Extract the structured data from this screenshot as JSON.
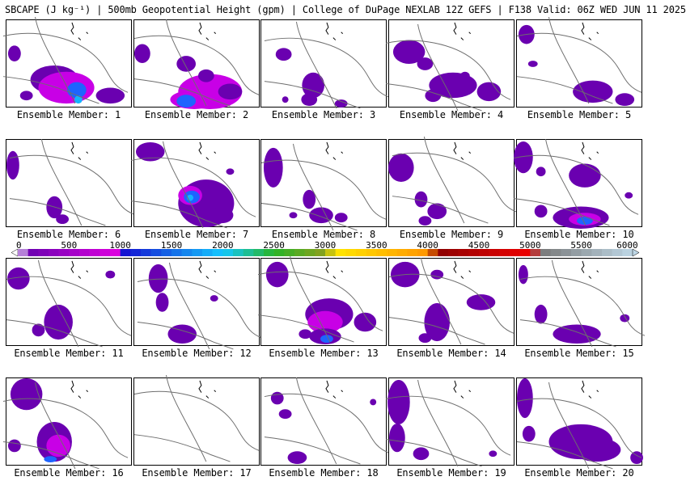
{
  "title": {
    "field": "SBCAPE (J kg⁻¹)",
    "overlay": "500mb Geopotential Height (gpm)",
    "source": "College of DuPage NEXLAB 12Z GEFS",
    "valid": "F138 Valid: 06Z WED JUN 11 2025",
    "separator": " | "
  },
  "panels": [
    {
      "label": "Ensemble Member: 1"
    },
    {
      "label": "Ensemble Member: 2"
    },
    {
      "label": "Ensemble Member: 3"
    },
    {
      "label": "Ensemble Member: 4"
    },
    {
      "label": "Ensemble Member: 5"
    },
    {
      "label": "Ensemble Member: 6"
    },
    {
      "label": "Ensemble Member: 7"
    },
    {
      "label": "Ensemble Member: 8"
    },
    {
      "label": "Ensemble Member: 9"
    },
    {
      "label": "Ensemble Member: 10"
    },
    {
      "label": "Ensemble Member: 11"
    },
    {
      "label": "Ensemble Member: 12"
    },
    {
      "label": "Ensemble Member: 13"
    },
    {
      "label": "Ensemble Member: 14"
    },
    {
      "label": "Ensemble Member: 15"
    },
    {
      "label": "Ensemble Member: 16"
    },
    {
      "label": "Ensemble Member: 17"
    },
    {
      "label": "Ensemble Member: 18"
    },
    {
      "label": "Ensemble Member: 19"
    },
    {
      "label": "Ensemble Member: 20"
    }
  ],
  "colorbar": {
    "min": 0,
    "max": 6000,
    "step": 100,
    "ticks": [
      "0",
      "500",
      "1000",
      "1500",
      "2000",
      "2500",
      "3000",
      "3500",
      "4000",
      "4500",
      "5000",
      "5500",
      "6000"
    ],
    "colors": {
      "purple": "#6a00b0",
      "magenta": "#e100e1",
      "blue": "#1414d2",
      "cyan": "#14c8ff",
      "green": "#28b428",
      "olive": "#8ca01e",
      "yellow": "#ffe600",
      "orange": "#ff9600",
      "darkred": "#8c0000",
      "red": "#f00000",
      "gray": "#787878",
      "lightblue": "#bed7e6"
    }
  },
  "map_colors": {
    "contour": "#6e6e6e",
    "coast": "#000000",
    "cape_low": "#6a00b0",
    "cape_mid": "#c800e6",
    "cape_high": "#1e64ff",
    "cape_peak": "#14b4ff"
  }
}
